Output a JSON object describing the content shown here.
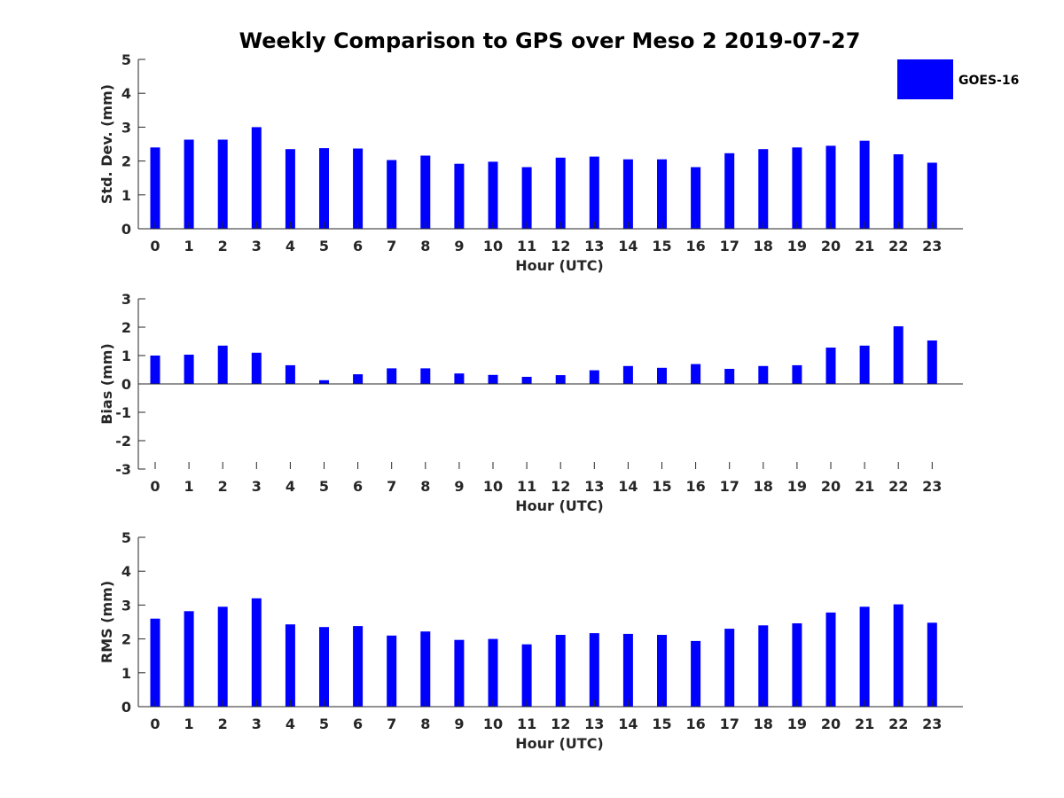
{
  "chart_data": {
    "type": "bar",
    "title": "Weekly Comparison to GPS over Meso 2 2019-07-27",
    "legend": {
      "label": "GOES-16",
      "placement": "top-right",
      "color": "#0000ff"
    },
    "bar_color": "#0000ff",
    "panels": [
      {
        "ylabel": "Std. Dev. (mm)",
        "xlabel": "Hour (UTC)",
        "ylim": [
          0,
          5
        ],
        "yticks": [
          0,
          1,
          2,
          3,
          4,
          5
        ],
        "categories": [
          "0",
          "1",
          "2",
          "3",
          "4",
          "5",
          "6",
          "7",
          "8",
          "9",
          "10",
          "11",
          "12",
          "13",
          "14",
          "15",
          "16",
          "17",
          "18",
          "19",
          "20",
          "21",
          "22",
          "23"
        ],
        "values": [
          2.4,
          2.63,
          2.63,
          3.0,
          2.35,
          2.38,
          2.37,
          2.03,
          2.16,
          1.92,
          1.98,
          1.82,
          2.1,
          2.13,
          2.05,
          2.05,
          1.82,
          2.23,
          2.35,
          2.4,
          2.45,
          2.6,
          2.2,
          1.95
        ]
      },
      {
        "ylabel": "Bias (mm)",
        "xlabel": "Hour (UTC)",
        "ylim": [
          -3,
          3
        ],
        "yticks": [
          -3,
          -2,
          -1,
          0,
          1,
          2,
          3
        ],
        "categories": [
          "0",
          "1",
          "2",
          "3",
          "4",
          "5",
          "6",
          "7",
          "8",
          "9",
          "10",
          "11",
          "12",
          "13",
          "14",
          "15",
          "16",
          "17",
          "18",
          "19",
          "20",
          "21",
          "22",
          "23"
        ],
        "values": [
          1.0,
          1.03,
          1.35,
          1.1,
          0.66,
          0.13,
          0.34,
          0.55,
          0.55,
          0.37,
          0.32,
          0.25,
          0.31,
          0.48,
          0.63,
          0.57,
          0.7,
          0.53,
          0.63,
          0.66,
          1.28,
          1.35,
          2.03,
          1.53
        ]
      },
      {
        "ylabel": "RMS (mm)",
        "xlabel": "Hour (UTC)",
        "ylim": [
          0,
          5
        ],
        "yticks": [
          0,
          1,
          2,
          3,
          4,
          5
        ],
        "categories": [
          "0",
          "1",
          "2",
          "3",
          "4",
          "5",
          "6",
          "7",
          "8",
          "9",
          "10",
          "11",
          "12",
          "13",
          "14",
          "15",
          "16",
          "17",
          "18",
          "19",
          "20",
          "21",
          "22",
          "23"
        ],
        "values": [
          2.6,
          2.82,
          2.95,
          3.2,
          2.43,
          2.35,
          2.38,
          2.1,
          2.22,
          1.97,
          2.0,
          1.84,
          2.12,
          2.17,
          2.15,
          2.12,
          1.94,
          2.3,
          2.4,
          2.46,
          2.78,
          2.95,
          3.02,
          2.48
        ]
      }
    ]
  }
}
